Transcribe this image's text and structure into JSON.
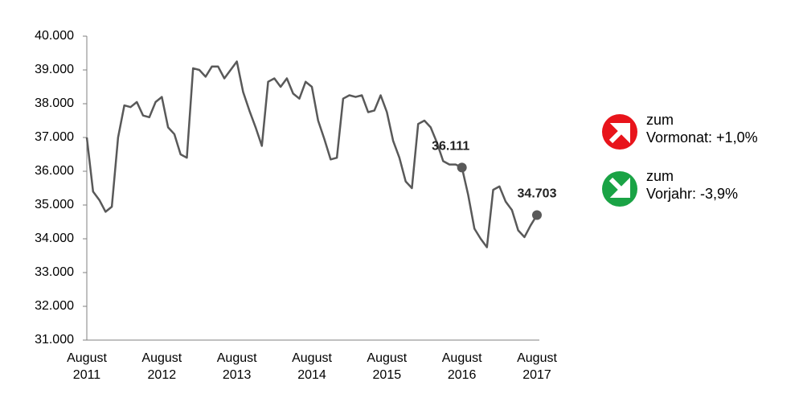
{
  "chart_data": {
    "type": "line",
    "categories": [
      "August\n2011",
      null,
      null,
      null,
      null,
      null,
      null,
      null,
      null,
      null,
      null,
      null,
      "August\n2012",
      null,
      null,
      null,
      null,
      null,
      null,
      null,
      null,
      null,
      null,
      null,
      "August\n2013",
      null,
      null,
      null,
      null,
      null,
      null,
      null,
      null,
      null,
      null,
      null,
      "August\n2014",
      null,
      null,
      null,
      null,
      null,
      null,
      null,
      null,
      null,
      null,
      null,
      "August\n2015",
      null,
      null,
      null,
      null,
      null,
      null,
      null,
      null,
      null,
      null,
      null,
      "August\n2016",
      null,
      null,
      null,
      null,
      null,
      null,
      null,
      null,
      null,
      null,
      null,
      "August\n2017"
    ],
    "values": [
      37000,
      35400,
      35150,
      34800,
      34950,
      37000,
      37950,
      37900,
      38050,
      37650,
      37600,
      38050,
      38200,
      37300,
      37100,
      36500,
      36400,
      39050,
      39000,
      38800,
      39100,
      39100,
      38750,
      39000,
      39250,
      38350,
      37800,
      37300,
      36750,
      38650,
      38750,
      38500,
      38750,
      38300,
      38150,
      38650,
      38500,
      37500,
      36950,
      36350,
      36400,
      38150,
      38250,
      38200,
      38250,
      37750,
      37800,
      38250,
      37750,
      36900,
      36400,
      35700,
      35500,
      37400,
      37500,
      37300,
      36850,
      36300,
      36200,
      36200,
      36111,
      35300,
      34300,
      34000,
      33750,
      35450,
      35550,
      35100,
      34850,
      34250,
      34050,
      34400,
      34703
    ],
    "value_labels": [
      null,
      null,
      null,
      null,
      null,
      null,
      null,
      null,
      null,
      null,
      null,
      null,
      null,
      null,
      null,
      null,
      null,
      null,
      null,
      null,
      null,
      null,
      null,
      null,
      null,
      null,
      null,
      null,
      null,
      null,
      null,
      null,
      null,
      null,
      null,
      null,
      null,
      null,
      null,
      null,
      null,
      null,
      null,
      null,
      null,
      null,
      null,
      null,
      null,
      null,
      null,
      null,
      null,
      null,
      null,
      null,
      null,
      null,
      null,
      null,
      "36.111",
      null,
      null,
      null,
      null,
      null,
      null,
      null,
      null,
      null,
      null,
      null,
      "34.703"
    ],
    "color": "#595959",
    "ylim": [
      31000,
      40000
    ],
    "yticks": [
      {
        "value": 31000,
        "label": "31.000"
      },
      {
        "value": 32000,
        "label": "32.000"
      },
      {
        "value": 33000,
        "label": "33.000"
      },
      {
        "value": 34000,
        "label": "34.000"
      },
      {
        "value": 35000,
        "label": "35.000"
      },
      {
        "value": 36000,
        "label": "36.000"
      },
      {
        "value": 37000,
        "label": "37.000"
      },
      {
        "value": 38000,
        "label": "38.000"
      },
      {
        "value": 39000,
        "label": "39.000"
      },
      {
        "value": 40000,
        "label": "40.000"
      }
    ],
    "grid": false,
    "annotations": [
      "zum\nVormonat: +1,0%",
      "zum\nVorjahr: -3,9%"
    ]
  }
}
